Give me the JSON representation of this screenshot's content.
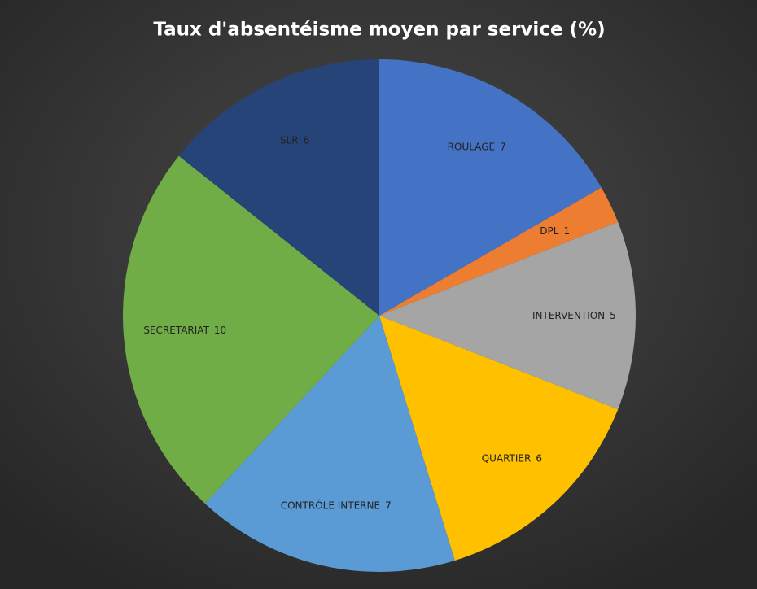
{
  "chart_data": {
    "type": "pie",
    "title": "Taux d'absentéisme moyen par service (%)",
    "categories": [
      "ROULAGE",
      "DPL",
      "INTERVENTION",
      "QUARTIER",
      "CONTRÔLE INTERNE",
      "SECRETARIAT",
      "SLR"
    ],
    "values": [
      7,
      1,
      5,
      6,
      7,
      10,
      6
    ],
    "colors": [
      "#4472c4",
      "#ed7d31",
      "#a5a5a5",
      "#ffc000",
      "#5b9bd5",
      "#70ad47",
      "#264478"
    ]
  }
}
